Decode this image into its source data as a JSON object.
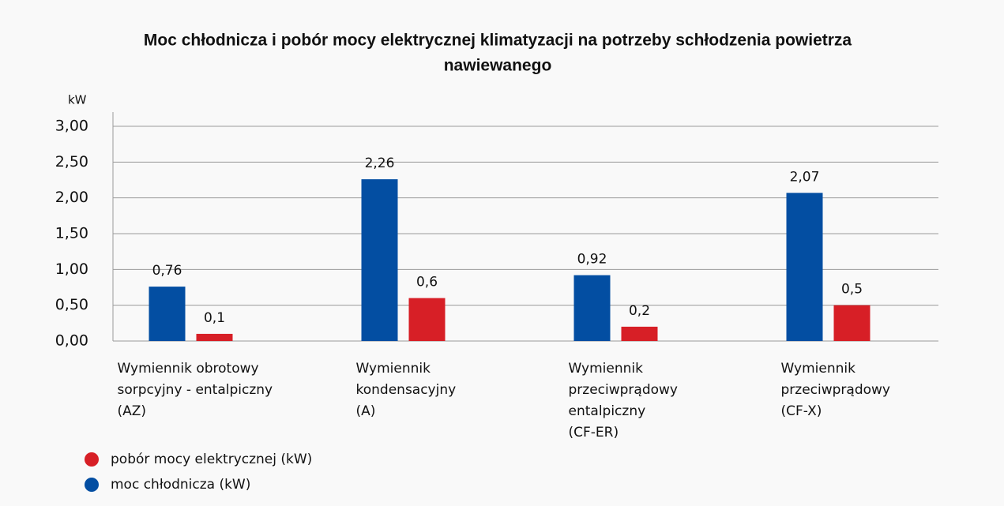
{
  "chart_data": {
    "type": "bar",
    "title": [
      "Moc chłodnicza i pobór mocy elektrycznej klimatyzacji na potrzeby schłodzenia powietrza",
      "nawiewanego"
    ],
    "y_label": "kW",
    "categories": [
      [
        "Wymiennik obrotowy",
        "sorpcyjny - entalpiczny",
        "(AZ)"
      ],
      [
        "Wymiennik",
        "kondensacyjny",
        "(A)"
      ],
      [
        "Wymiennik",
        "przeciwprądowy",
        "entalpiczny",
        "(CF-ER)"
      ],
      [
        "Wymiennik",
        "przeciwprądowy",
        "(CF-X)"
      ]
    ],
    "series": [
      {
        "name": "moc chłodnicza (kW)",
        "color": "#034ea2",
        "values": [
          0.76,
          2.26,
          0.92,
          2.07
        ],
        "value_labels": [
          "0,76",
          "2,26",
          "0,92",
          "2,07"
        ]
      },
      {
        "name": "pobór mocy elektrycznej (kW)",
        "color": "#d71f26",
        "values": [
          0.1,
          0.6,
          0.2,
          0.5
        ],
        "value_labels": [
          "0,1",
          "0,6",
          "0,2",
          "0,5"
        ]
      }
    ],
    "ylim": [
      0,
      3
    ],
    "yticks": [
      {
        "value": 0,
        "label": "0,00"
      },
      {
        "value": 0.5,
        "label": "0,50"
      },
      {
        "value": 1,
        "label": "1,00"
      },
      {
        "value": 1.5,
        "label": "1,50"
      },
      {
        "value": 2,
        "label": "2,00"
      },
      {
        "value": 2.5,
        "label": "2,50"
      },
      {
        "value": 3,
        "label": "3,00"
      }
    ],
    "grid": true
  }
}
